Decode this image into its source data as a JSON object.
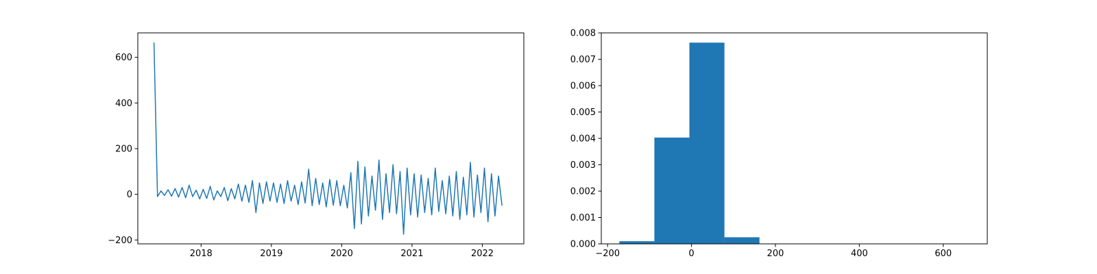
{
  "chart_data": [
    {
      "type": "line",
      "color": "#1f77b4",
      "x": [
        2017.33,
        2017.38,
        2017.43,
        2017.48,
        2017.53,
        2017.58,
        2017.63,
        2017.68,
        2017.73,
        2017.78,
        2017.83,
        2017.88,
        2017.93,
        2017.98,
        2018.03,
        2018.08,
        2018.13,
        2018.18,
        2018.23,
        2018.28,
        2018.33,
        2018.38,
        2018.43,
        2018.48,
        2018.53,
        2018.58,
        2018.63,
        2018.68,
        2018.73,
        2018.78,
        2018.83,
        2018.88,
        2018.93,
        2018.98,
        2019.03,
        2019.08,
        2019.13,
        2019.18,
        2019.23,
        2019.28,
        2019.33,
        2019.38,
        2019.43,
        2019.48,
        2019.53,
        2019.58,
        2019.63,
        2019.68,
        2019.73,
        2019.78,
        2019.83,
        2019.88,
        2019.93,
        2019.98,
        2020.03,
        2020.08,
        2020.13,
        2020.18,
        2020.23,
        2020.28,
        2020.33,
        2020.38,
        2020.43,
        2020.48,
        2020.53,
        2020.58,
        2020.63,
        2020.68,
        2020.73,
        2020.78,
        2020.83,
        2020.88,
        2020.93,
        2020.98,
        2021.03,
        2021.08,
        2021.13,
        2021.18,
        2021.23,
        2021.28,
        2021.33,
        2021.38,
        2021.43,
        2021.48,
        2021.53,
        2021.58,
        2021.63,
        2021.68,
        2021.73,
        2021.78,
        2021.83,
        2021.88,
        2021.93,
        2021.98,
        2022.03,
        2022.08,
        2022.13,
        2022.18,
        2022.23,
        2022.28
      ],
      "values": [
        665,
        -10,
        15,
        -5,
        20,
        -8,
        25,
        -12,
        30,
        -15,
        40,
        -10,
        18,
        -20,
        22,
        -18,
        35,
        -25,
        15,
        -10,
        30,
        -28,
        25,
        -20,
        45,
        -30,
        40,
        -35,
        60,
        -80,
        50,
        -40,
        55,
        -30,
        50,
        -35,
        45,
        -40,
        60,
        -30,
        40,
        -45,
        55,
        -38,
        110,
        -50,
        70,
        -45,
        50,
        -55,
        65,
        -48,
        60,
        -50,
        40,
        -60,
        95,
        -150,
        145,
        -130,
        120,
        -95,
        80,
        -70,
        150,
        -110,
        90,
        -80,
        130,
        -85,
        100,
        -175,
        115,
        -90,
        90,
        -100,
        85,
        -80,
        70,
        -90,
        115,
        -75,
        60,
        -85,
        80,
        -95,
        100,
        -110,
        75,
        -90,
        140,
        -100,
        85,
        -80,
        115,
        -120,
        90,
        -95,
        80,
        -50
      ],
      "xlim": [
        2017.1,
        2022.59
      ],
      "xticks": [
        2018,
        2019,
        2020,
        2021,
        2022
      ],
      "ylim": [
        -217,
        707
      ],
      "yticks": [
        {
          "value": -200,
          "label": "−200"
        },
        0,
        200,
        400,
        600
      ]
    },
    {
      "type": "histogram",
      "color": "#1f77b4",
      "bins": [
        -172,
        -88.5,
        -5,
        78.5,
        162,
        245.5,
        329,
        412.5,
        496,
        579.5,
        663
      ],
      "values": [
        0.0001,
        0.00403,
        0.00763,
        0.00025,
        0,
        0,
        0,
        0,
        0,
        5e-06
      ],
      "xlim": [
        -215,
        705
      ],
      "xticks": [
        {
          "value": -200,
          "label": "−200"
        },
        0,
        200,
        400,
        600
      ],
      "ylim": [
        0,
        0.008
      ],
      "yticks": [
        {
          "value": 0,
          "label": "0.000"
        },
        {
          "value": 0.001,
          "label": "0.001"
        },
        {
          "value": 0.002,
          "label": "0.002"
        },
        {
          "value": 0.003,
          "label": "0.003"
        },
        {
          "value": 0.004,
          "label": "0.004"
        },
        {
          "value": 0.005,
          "label": "0.005"
        },
        {
          "value": 0.006,
          "label": "0.006"
        },
        {
          "value": 0.007,
          "label": "0.007"
        },
        {
          "value": 0.008,
          "label": "0.008"
        }
      ]
    }
  ]
}
